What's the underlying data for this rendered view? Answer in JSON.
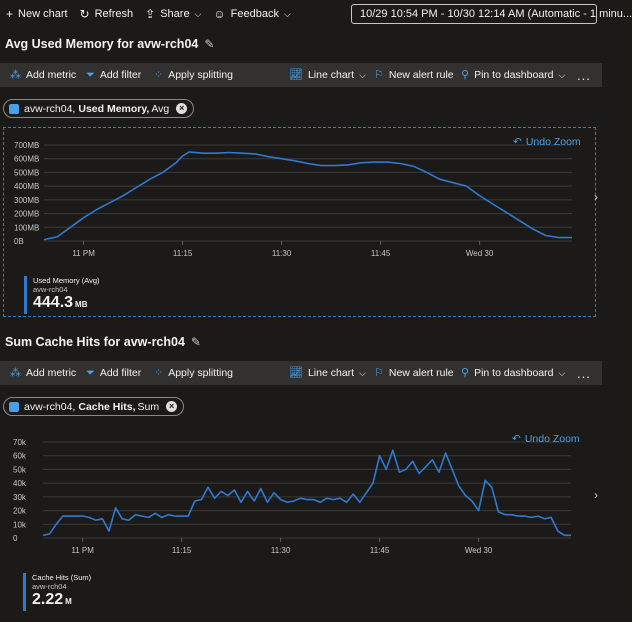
{
  "topbar": {
    "new_chart": "New chart",
    "refresh": "Refresh",
    "share": "Share",
    "feedback": "Feedback",
    "time_range": "10/29 10:54 PM - 10/30 12:14 AM (Automatic - 1 minu..."
  },
  "charts": [
    {
      "title": "Avg Used Memory for avw-rch04",
      "toolbar": {
        "add_metric": "Add metric",
        "add_filter": "Add filter",
        "apply_splitting": "Apply splitting",
        "line_chart": "Line chart",
        "new_alert_rule": "New alert rule",
        "pin_to_dashboard": "Pin to dashboard",
        "more": "..."
      },
      "pill": {
        "resource": "avw-rch04,",
        "metric": "Used Memory,",
        "agg": "Avg"
      },
      "undo_zoom": "Undo Zoom",
      "legend": {
        "name": "Used Memory (Avg)",
        "resource": "avw-rch04",
        "value": "444.3",
        "unit": "MB"
      },
      "chart_data": {
        "type": "line",
        "y_ticks": [
          "700MB",
          "600MB",
          "500MB",
          "400MB",
          "300MB",
          "200MB",
          "100MB",
          "0B"
        ],
        "ylim": [
          0,
          700
        ],
        "x_ticks": [
          "11 PM",
          "11:15",
          "11:30",
          "11:45",
          "Wed 30"
        ],
        "x_tick_minutes": [
          6,
          21,
          36,
          51,
          66
        ],
        "xlim": [
          0,
          80
        ],
        "series": [
          {
            "color": "#2f7ad1",
            "x": [
              0,
              2,
              4,
              6,
              8,
              10,
              12,
              14,
              16,
              18,
              20,
              21,
              22,
              24,
              26,
              28,
              30,
              32,
              34,
              36,
              38,
              40,
              42,
              44,
              46,
              48,
              50,
              52,
              54,
              56,
              58,
              60,
              62,
              64,
              66,
              68,
              70,
              72,
              74,
              76,
              78,
              80
            ],
            "values": [
              10,
              30,
              100,
              170,
              230,
              280,
              330,
              390,
              450,
              500,
              570,
              620,
              650,
              640,
              640,
              645,
              640,
              635,
              615,
              600,
              585,
              565,
              550,
              550,
              555,
              570,
              575,
              575,
              565,
              545,
              500,
              450,
              425,
              400,
              330,
              270,
              210,
              150,
              90,
              40,
              25,
              25
            ]
          }
        ]
      }
    },
    {
      "title": "Sum Cache Hits for avw-rch04",
      "toolbar": {
        "add_metric": "Add metric",
        "add_filter": "Add filter",
        "apply_splitting": "Apply splitting",
        "line_chart": "Line chart",
        "new_alert_rule": "New alert rule",
        "pin_to_dashboard": "Pin to dashboard",
        "more": "..."
      },
      "pill": {
        "resource": "avw-rch04,",
        "metric": "Cache Hits,",
        "agg": "Sum"
      },
      "undo_zoom": "Undo Zoom",
      "legend": {
        "name": "Cache Hits (Sum)",
        "resource": "avw-rch04",
        "value": "2.22",
        "unit": "M"
      },
      "chart_data": {
        "type": "line",
        "y_ticks": [
          "70k",
          "60k",
          "50k",
          "40k",
          "30k",
          "20k",
          "10k",
          "0"
        ],
        "ylim": [
          0,
          70000
        ],
        "x_ticks": [
          "11 PM",
          "11:15",
          "11:30",
          "11:45",
          "Wed 30"
        ],
        "x_tick_minutes": [
          6,
          21,
          36,
          51,
          66
        ],
        "xlim": [
          0,
          80
        ],
        "series": [
          {
            "color": "#2f7ad1",
            "x": [
              0,
              1,
              2,
              3,
              4,
              5,
              6,
              7,
              8,
              9,
              10,
              11,
              12,
              13,
              14,
              15,
              16,
              17,
              18,
              19,
              20,
              21,
              22,
              23,
              24,
              25,
              26,
              27,
              28,
              29,
              30,
              31,
              32,
              33,
              34,
              35,
              36,
              37,
              38,
              39,
              40,
              41,
              42,
              43,
              44,
              45,
              46,
              47,
              48,
              49,
              50,
              51,
              52,
              53,
              54,
              55,
              56,
              57,
              58,
              59,
              60,
              61,
              62,
              63,
              64,
              65,
              66,
              67,
              68,
              69,
              70,
              71,
              72,
              73,
              74,
              75,
              76,
              77,
              78,
              79,
              80
            ],
            "values": [
              2000,
              3000,
              10000,
              16000,
              16000,
              16000,
              16000,
              15000,
              13000,
              14000,
              5000,
              22000,
              14000,
              13000,
              17000,
              16000,
              15000,
              18000,
              15000,
              17000,
              16000,
              16000,
              16000,
              27000,
              28000,
              37000,
              29000,
              34000,
              31000,
              35000,
              26000,
              34000,
              27000,
              36000,
              26000,
              33000,
              28000,
              26000,
              27000,
              29000,
              28000,
              28000,
              26000,
              29000,
              28000,
              29000,
              26000,
              32000,
              26000,
              33000,
              40000,
              60000,
              50000,
              64000,
              48000,
              50000,
              56000,
              47000,
              52000,
              57000,
              48000,
              62000,
              50000,
              38000,
              31000,
              27000,
              20000,
              42000,
              37000,
              19000,
              17000,
              17000,
              16000,
              16000,
              15000,
              16000,
              14000,
              15000,
              5000,
              2000,
              2000
            ]
          }
        ]
      }
    }
  ]
}
